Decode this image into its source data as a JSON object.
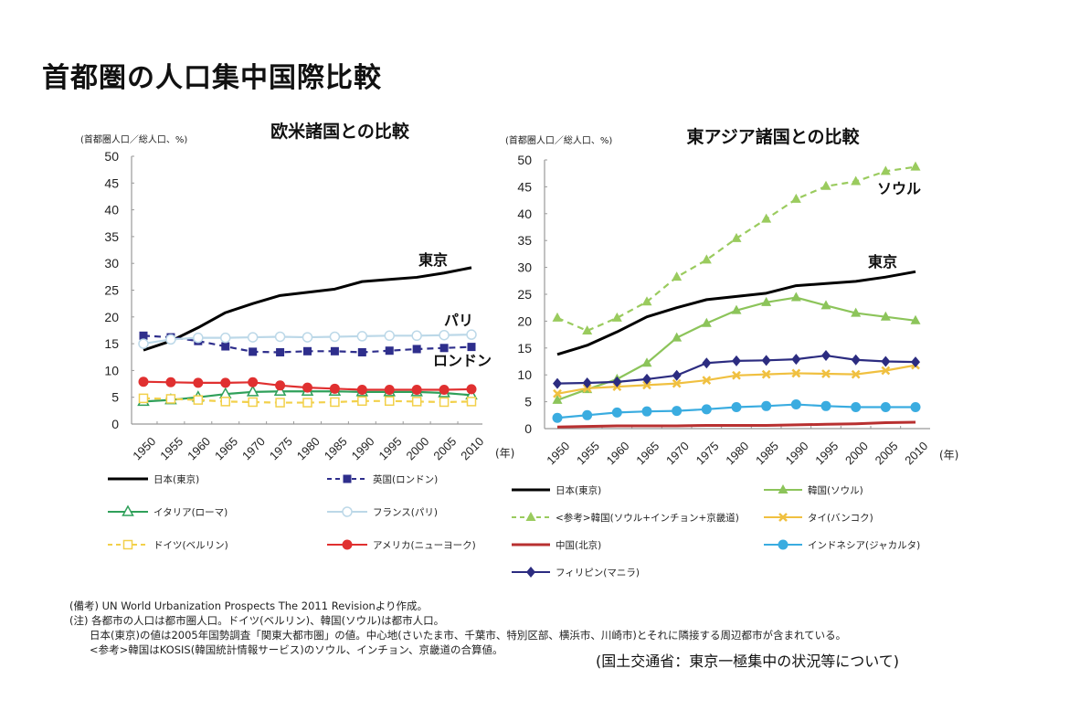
{
  "page": {
    "title": "首都圏の人口集中国際比較",
    "notes": [
      "(備考) UN World Urbanization Prospects The 2011 Revisionより作成。",
      "(注)  各都市の人口は都市圏人口。ドイツ(ベルリン)、韓国(ソウル)は都市人口。",
      "日本(東京)の値は2005年国勢調査「関東大都市圏」の値。中心地(さいたま市、千葉市、特別区部、横浜市、川崎市)とそれに隣接する周辺都市が含まれている。",
      "<参考>韓国はKOSIS(韓国統計情報サービス)のソウル、インチョン、京畿道の合算値。"
    ],
    "source": "(国土交通省：東京一極集中の状況等について)"
  },
  "chart_data": [
    {
      "type": "line",
      "title": "欧米諸国との比較",
      "ylabel": "(首都圏人口／総人口、%)",
      "xlabel": "(年)",
      "x": [
        1950,
        1955,
        1960,
        1965,
        1970,
        1975,
        1980,
        1985,
        1990,
        1995,
        2000,
        2005,
        2010
      ],
      "ylim": [
        0,
        50
      ],
      "yticks": [
        0,
        5,
        10,
        15,
        20,
        25,
        30,
        35,
        40,
        45,
        50
      ],
      "grid": false,
      "legend_position": "bottom",
      "series": [
        {
          "name": "日本(東京)",
          "color": "#000000",
          "dash": false,
          "marker": "none",
          "label": "東京",
          "values": [
            13.8,
            15.5,
            18.0,
            20.8,
            22.5,
            24.0,
            24.6,
            25.2,
            26.6,
            27.0,
            27.4,
            28.2,
            29.2
          ]
        },
        {
          "name": "英国(ロンドン)",
          "color": "#2e2e8c",
          "dash": true,
          "marker": "square",
          "label": "ロンドン",
          "values": [
            16.5,
            16.2,
            15.5,
            14.5,
            13.5,
            13.4,
            13.6,
            13.6,
            13.4,
            13.7,
            14.0,
            14.2,
            14.4
          ]
        },
        {
          "name": "イタリア(ローマ)",
          "color": "#2fa05a",
          "dash": false,
          "marker": "triangle-open",
          "values": [
            4.2,
            4.5,
            5.0,
            5.6,
            6.0,
            6.1,
            6.1,
            6.1,
            6.0,
            6.0,
            6.0,
            5.8,
            5.4
          ]
        },
        {
          "name": "フランス(パリ)",
          "color": "#bcd8e8",
          "dash": false,
          "marker": "circle-open",
          "label": "パリ",
          "values": [
            15.0,
            15.8,
            16.1,
            16.1,
            16.2,
            16.3,
            16.2,
            16.3,
            16.4,
            16.5,
            16.5,
            16.6,
            16.7
          ]
        },
        {
          "name": "ドイツ(ベルリン)",
          "color": "#f2d04a",
          "dash": true,
          "marker": "square-open",
          "values": [
            4.8,
            4.7,
            4.5,
            4.2,
            4.1,
            4.0,
            4.0,
            4.1,
            4.3,
            4.3,
            4.2,
            4.1,
            4.2
          ]
        },
        {
          "name": "アメリカ(ニューヨーク)",
          "color": "#e03030",
          "dash": false,
          "marker": "circle",
          "values": [
            7.9,
            7.8,
            7.7,
            7.7,
            7.8,
            7.2,
            6.8,
            6.6,
            6.4,
            6.4,
            6.4,
            6.4,
            6.5
          ]
        }
      ]
    },
    {
      "type": "line",
      "title": "東アジア諸国との比較",
      "ylabel": "(首都圏人口／総人口、%)",
      "xlabel": "(年)",
      "x": [
        1950,
        1955,
        1960,
        1965,
        1970,
        1975,
        1980,
        1985,
        1990,
        1995,
        2000,
        2005,
        2010
      ],
      "ylim": [
        0,
        50
      ],
      "yticks": [
        0,
        5,
        10,
        15,
        20,
        25,
        30,
        35,
        40,
        45,
        50
      ],
      "grid": false,
      "legend_position": "bottom",
      "series": [
        {
          "name": "日本(東京)",
          "color": "#000000",
          "dash": false,
          "marker": "none",
          "label": "東京",
          "values": [
            13.8,
            15.5,
            18.0,
            20.8,
            22.5,
            24.0,
            24.6,
            25.2,
            26.6,
            27.0,
            27.4,
            28.2,
            29.2
          ]
        },
        {
          "name": "韓国(ソウル)",
          "color": "#8cc45a",
          "dash": false,
          "marker": "triangle",
          "values": [
            5.3,
            7.3,
            9.2,
            12.2,
            16.9,
            19.6,
            22.0,
            23.5,
            24.4,
            22.9,
            21.5,
            20.8,
            20.1
          ]
        },
        {
          "name": "<参考>韓国(ソウル+インチョン+京畿道)",
          "color": "#9acb5e",
          "dash": true,
          "marker": "triangle",
          "label": "ソウル",
          "values": [
            20.6,
            18.2,
            20.6,
            23.6,
            28.2,
            31.4,
            35.4,
            39.0,
            42.7,
            45.1,
            46.0,
            47.9,
            48.7
          ]
        },
        {
          "name": "タイ(バンコク)",
          "color": "#f0c040",
          "dash": false,
          "marker": "cross",
          "values": [
            6.5,
            7.5,
            7.8,
            8.1,
            8.4,
            9.0,
            9.9,
            10.1,
            10.3,
            10.2,
            10.1,
            10.8,
            11.8
          ]
        },
        {
          "name": "中国(北京)",
          "color": "#b83030",
          "dash": false,
          "marker": "none",
          "values": [
            0.3,
            0.4,
            0.5,
            0.5,
            0.5,
            0.6,
            0.6,
            0.6,
            0.7,
            0.8,
            0.9,
            1.1,
            1.2
          ]
        },
        {
          "name": "インドネシア(ジャカルタ)",
          "color": "#3aace0",
          "dash": false,
          "marker": "circle",
          "values": [
            2.0,
            2.5,
            3.0,
            3.2,
            3.3,
            3.6,
            4.0,
            4.2,
            4.5,
            4.2,
            4.0,
            4.0,
            4.0
          ]
        },
        {
          "name": "フィリピン(マニラ)",
          "color": "#2c2c80",
          "dash": false,
          "marker": "diamond",
          "values": [
            8.4,
            8.5,
            8.7,
            9.2,
            9.9,
            12.2,
            12.6,
            12.7,
            12.9,
            13.6,
            12.8,
            12.5,
            12.4
          ]
        }
      ]
    }
  ]
}
